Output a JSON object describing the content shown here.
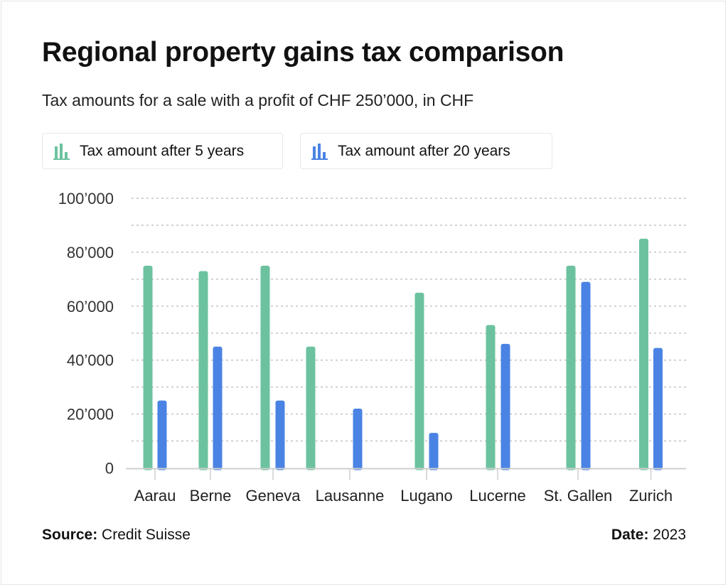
{
  "chart_data": {
    "type": "bar",
    "title": "Regional property gains tax comparison",
    "subtitle": "Tax amounts for a sale with a profit of CHF 250’000, in CHF",
    "categories": [
      "Aarau",
      "Berne",
      "Geneva",
      "Lausanne",
      "Lugano",
      "Lucerne",
      "St. Gallen",
      "Zurich"
    ],
    "series": [
      {
        "name": "Tax amount after 5 years",
        "color": "#6cc29f",
        "values": [
          75000,
          73000,
          75000,
          45000,
          65000,
          53000,
          75000,
          85000
        ]
      },
      {
        "name": "Tax amount after 20 years",
        "color": "#4a83e4",
        "values": [
          25000,
          45000,
          25000,
          22000,
          13000,
          46000,
          69000,
          44500
        ]
      }
    ],
    "ylim": [
      0,
      100000
    ],
    "yticks": [
      0,
      20000,
      40000,
      60000,
      80000,
      100000
    ],
    "ytick_labels": [
      "0",
      "20’000",
      "40’000",
      "60’000",
      "80’000",
      "100’000"
    ],
    "grid": true,
    "legend_position": "top-left",
    "xlabel": "",
    "ylabel": ""
  },
  "footer": {
    "source_label": "Source:",
    "source": "Credit Suisse",
    "date_label": "Date:",
    "date": "2023"
  }
}
